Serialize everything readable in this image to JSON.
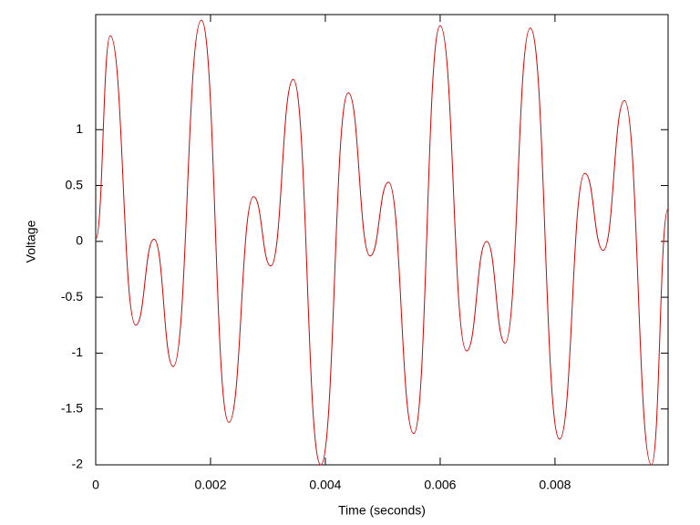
{
  "chart_data": {
    "type": "line",
    "xlabel": "Time (seconds)",
    "ylabel": "Voltage",
    "x": [
      0,
      0.000254,
      0.000698,
      0.001016,
      0.00135,
      0.00184,
      0.00232,
      0.00275,
      0.00305,
      0.00344,
      0.00392,
      0.0044,
      0.00478,
      0.0051,
      0.00554,
      0.006,
      0.00646,
      0.00681,
      0.00713,
      0.00757,
      0.00808,
      0.00852,
      0.00884,
      0.00921,
      0.00968,
      0.00997
    ],
    "series": [
      {
        "color": "#d40000",
        "values": [
          0.02,
          1.84,
          -0.75,
          0.02,
          -1.12,
          1.98,
          -1.62,
          0.4,
          -0.22,
          1.45,
          -2.0,
          1.33,
          -0.13,
          0.53,
          -1.72,
          1.93,
          -0.98,
          0.0,
          -0.91,
          1.91,
          -1.77,
          0.61,
          -0.08,
          1.26,
          -2.0,
          0.29
        ]
      }
    ],
    "xlim": [
      0,
      0.00997
    ],
    "ylim": [
      -2,
      2.03
    ],
    "xticks": [
      0,
      0.002,
      0.004,
      0.006,
      0.008
    ],
    "yticks": [
      -2,
      -1.5,
      -1,
      -0.5,
      0,
      0.5,
      1
    ]
  }
}
